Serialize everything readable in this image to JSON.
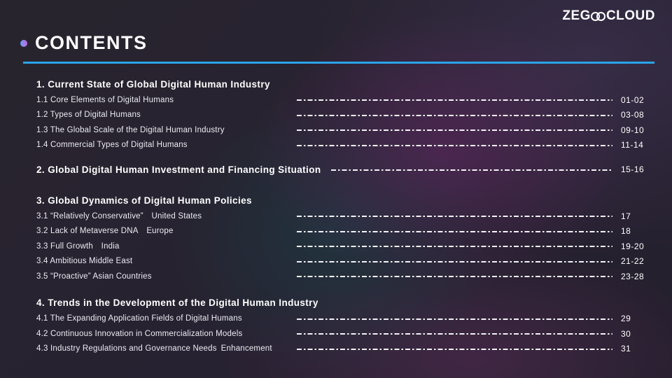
{
  "logo": {
    "prefix": "ZEG",
    "suffix": "CLOUD"
  },
  "header": {
    "title": "CONTENTS"
  },
  "colors": {
    "accent_line": "#2aa4e8",
    "bullet_gradient_start": "#6d9cf2",
    "bullet_gradient_end": "#c06ae6",
    "background_base": "#272231",
    "leader_dots": "#f2f1f6"
  },
  "sections": [
    {
      "heading": "1. Current State of Global Digital Human Industry",
      "pages": "",
      "items": [
        {
          "label": "1.1 Core Elements of Digital Humans",
          "pages": "01-02"
        },
        {
          "label": "1.2 Types of Digital Humans",
          "pages": "03-08"
        },
        {
          "label": "1.3 The Global Scale of the Digital Human Industry",
          "pages": "09-10"
        },
        {
          "label": "1.4 Commercial Types of Digital Humans",
          "pages": "11-14"
        }
      ]
    },
    {
      "heading": "2. Global Digital Human Investment and Financing Situation",
      "pages": "15-16",
      "items": []
    },
    {
      "heading": "3. Global Dynamics of Digital Human Policies",
      "pages": "",
      "items": [
        {
          "label": "3.1 “Relatively Conservative” United States",
          "pages": "17"
        },
        {
          "label": "3.2 Lack of Metaverse DNA Europe",
          "pages": "18"
        },
        {
          "label": "3.3 Full Growth India",
          "pages": "19-20"
        },
        {
          "label": "3.4 Ambitious Middle East",
          "pages": "21-22"
        },
        {
          "label": "3.5 “Proactive” Asian Countries",
          "pages": "23-28"
        }
      ]
    },
    {
      "heading": "4. Trends in the Development of the Digital Human Industry",
      "pages": "",
      "items": [
        {
          "label": "4.1 The Expanding Application Fields of Digital Humans",
          "pages": "29"
        },
        {
          "label": "4.2 Continuous Innovation in Commercialization Models",
          "pages": "30"
        },
        {
          "label": "4.3 Industry Regulations and Governance Needs Enhancement",
          "pages": "31"
        }
      ]
    }
  ]
}
